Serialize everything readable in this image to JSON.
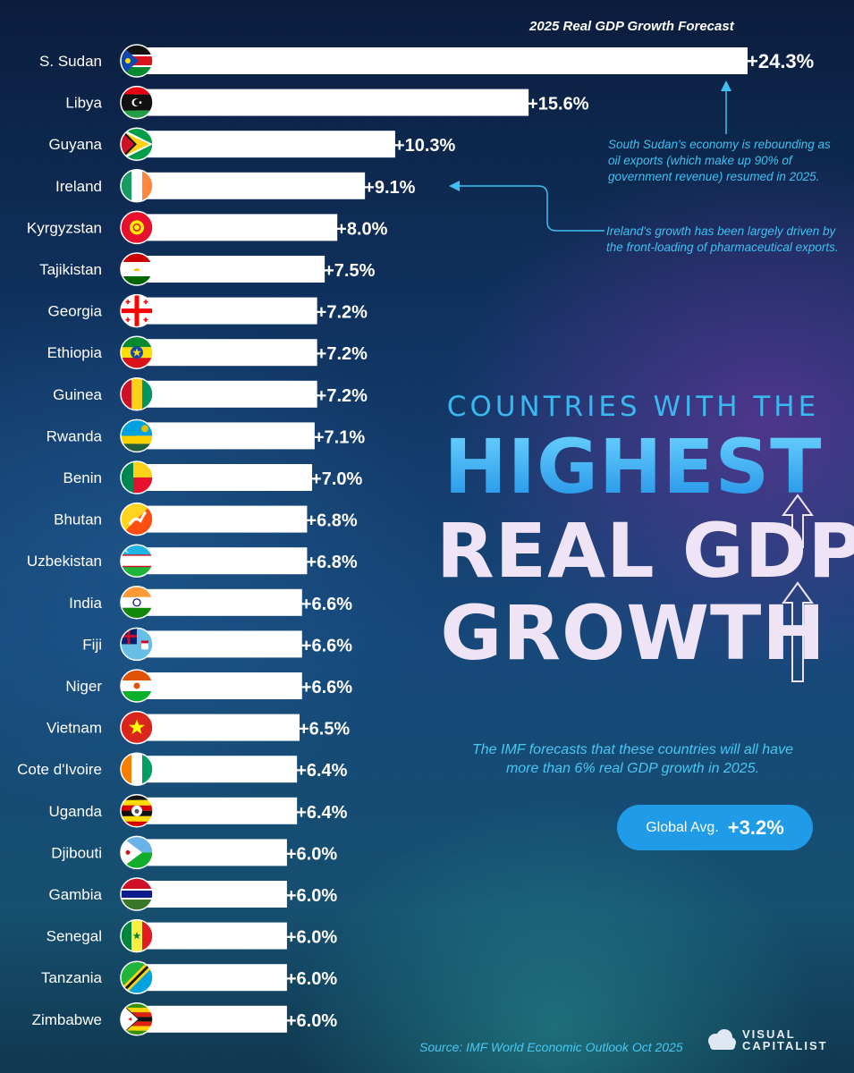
{
  "chart_data": {
    "type": "bar",
    "orientation": "horizontal",
    "title": "2025 Real GDP Growth Forecast",
    "categories": [
      "S. Sudan",
      "Libya",
      "Guyana",
      "Ireland",
      "Kyrgyzstan",
      "Tajikistan",
      "Georgia",
      "Ethiopia",
      "Guinea",
      "Rwanda",
      "Benin",
      "Bhutan",
      "Uzbekistan",
      "India",
      "Fiji",
      "Niger",
      "Vietnam",
      "Cote d'Ivoire",
      "Uganda",
      "Djibouti",
      "Gambia",
      "Senegal",
      "Tanzania",
      "Zimbabwe"
    ],
    "values": [
      24.3,
      15.6,
      10.3,
      9.1,
      8.0,
      7.5,
      7.2,
      7.2,
      7.2,
      7.1,
      7.0,
      6.8,
      6.8,
      6.6,
      6.6,
      6.6,
      6.5,
      6.4,
      6.4,
      6.0,
      6.0,
      6.0,
      6.0,
      6.0
    ],
    "value_labels": [
      "+24.3%",
      "+15.6%",
      "+10.3%",
      "+9.1%",
      "+8.0%",
      "+7.5%",
      "+7.2%",
      "+7.2%",
      "+7.2%",
      "+7.1%",
      "+7.0%",
      "+6.8%",
      "+6.8%",
      "+6.6%",
      "+6.6%",
      "+6.6%",
      "+6.5%",
      "+6.4%",
      "+6.4%",
      "+6.0%",
      "+6.0%",
      "+6.0%",
      "+6.0%",
      "+6.0%"
    ],
    "flag_icons": [
      "south-sudan-flag-icon",
      "libya-flag-icon",
      "guyana-flag-icon",
      "ireland-flag-icon",
      "kyrgyzstan-flag-icon",
      "tajikistan-flag-icon",
      "georgia-flag-icon",
      "ethiopia-flag-icon",
      "guinea-flag-icon",
      "rwanda-flag-icon",
      "benin-flag-icon",
      "bhutan-flag-icon",
      "uzbekistan-flag-icon",
      "india-flag-icon",
      "fiji-flag-icon",
      "niger-flag-icon",
      "vietnam-flag-icon",
      "cote-divoire-flag-icon",
      "uganda-flag-icon",
      "djibouti-flag-icon",
      "gambia-flag-icon",
      "senegal-flag-icon",
      "tanzania-flag-icon",
      "zimbabwe-flag-icon"
    ],
    "xlim": [
      0,
      24.3
    ],
    "bar_color": "#ffffff",
    "grid": false,
    "legend": "none",
    "annotations": [
      {
        "target": "S. Sudan",
        "text": "South Sudan's economy is rebounding as oil exports (which make up 90% of government revenue) resumed in 2025."
      },
      {
        "target": "Ireland",
        "text": "Ireland's growth has been largely driven by the front-loading of pharmaceutical exports."
      }
    ]
  },
  "headline": {
    "line1": "COUNTRIES WITH THE",
    "line2": "HIGHEST",
    "line3": "REAL GDP",
    "line4": "GROWTH"
  },
  "subtitle": "The IMF forecasts that these countries will all have more than 6% real GDP growth in 2025.",
  "global_avg": {
    "label": "Global Avg.",
    "value": "+3.2%"
  },
  "source": "Source: IMF World Economic Outlook Oct 2025",
  "logo": {
    "line1": "VISUAL",
    "line2": "CAPITALIST"
  },
  "colors": {
    "accent": "#3fc1f0",
    "pill": "#1f9be8",
    "bar": "#ffffff",
    "headline_light": "#efe4f5"
  }
}
